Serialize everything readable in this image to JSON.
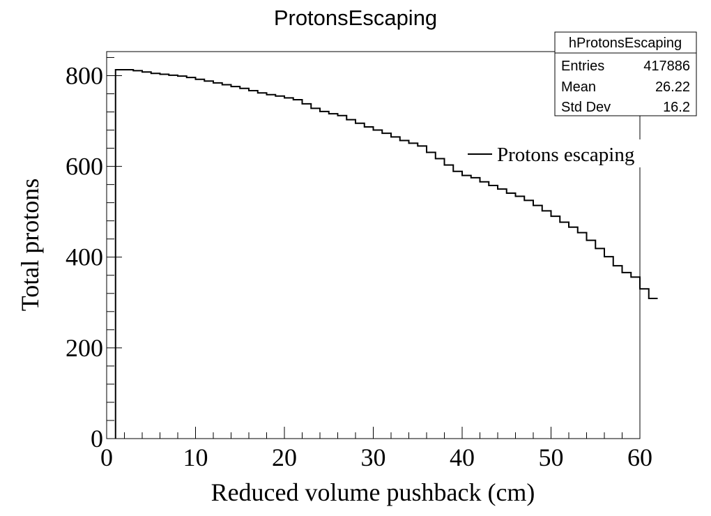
{
  "chart_data": {
    "type": "histogram",
    "title": "ProtonsEscaping",
    "xlabel": "Reduced volume pushback (cm)",
    "ylabel": "Total protons",
    "xlim": [
      0,
      60
    ],
    "ylim": [
      0,
      853
    ],
    "x_ticks": [
      "0",
      "10",
      "20",
      "30",
      "40",
      "50",
      "60"
    ],
    "y_ticks": [
      "0",
      "200",
      "400",
      "600",
      "800"
    ],
    "bin_edges_start": 1,
    "bin_width": 1,
    "values": [
      813,
      813,
      811,
      808,
      805,
      803,
      801,
      799,
      796,
      792,
      788,
      784,
      780,
      776,
      772,
      767,
      762,
      758,
      755,
      751,
      747,
      738,
      728,
      721,
      716,
      712,
      703,
      695,
      687,
      680,
      673,
      665,
      657,
      651,
      645,
      631,
      617,
      603,
      589,
      580,
      575,
      566,
      558,
      550,
      541,
      534,
      525,
      514,
      502,
      490,
      477,
      466,
      454,
      437,
      419,
      401,
      381,
      366,
      356,
      330,
      309
    ],
    "legend": {
      "position": "top-right",
      "entries": [
        "Protons escaping"
      ]
    },
    "stats_box": {
      "name": "hProtonsEscaping",
      "rows": [
        {
          "label": "Entries",
          "value": "417886"
        },
        {
          "label": "Mean",
          "value": "26.22"
        },
        {
          "label": "Std Dev",
          "value": "16.2"
        }
      ]
    },
    "colors": {
      "line": "#000000",
      "background": "#ffffff"
    }
  }
}
